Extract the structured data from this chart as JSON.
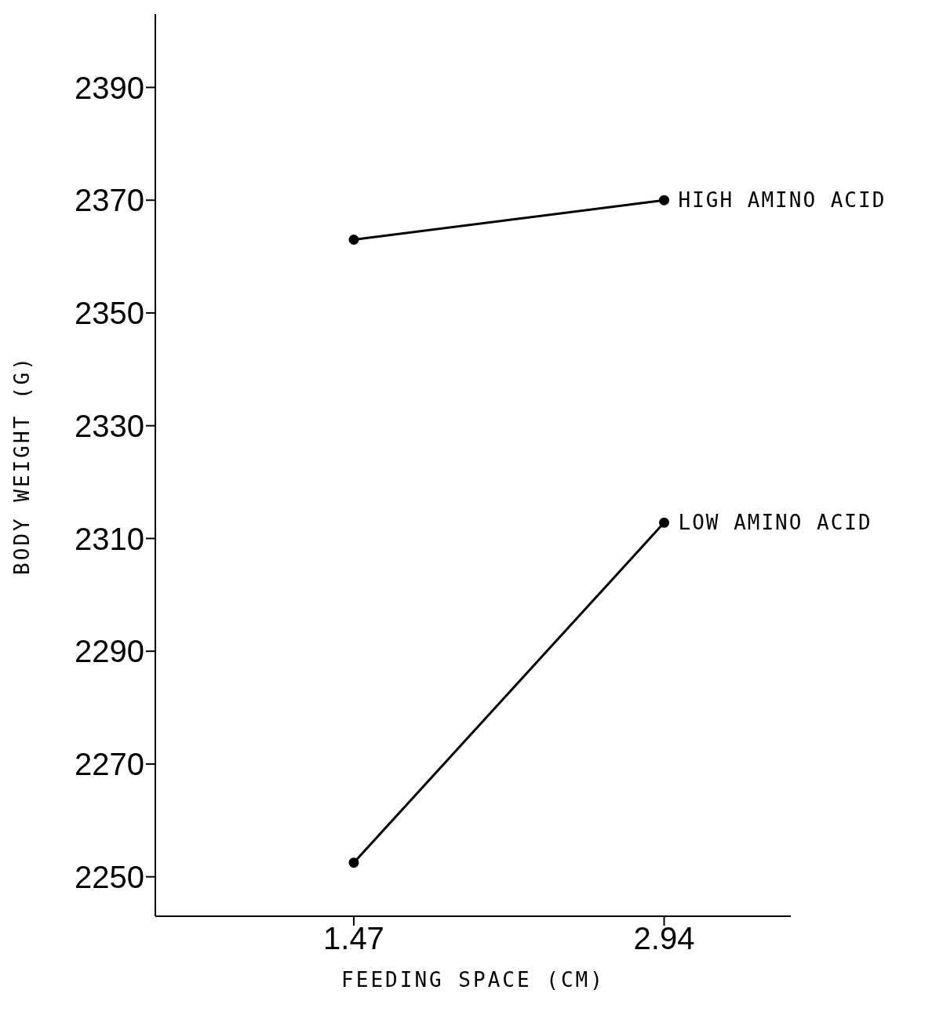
{
  "chart_data": {
    "type": "line",
    "xlabel": "FEEDING SPACE (CM)",
    "ylabel": "BODY WEIGHT (G)",
    "x": [
      1.47,
      2.94
    ],
    "series": [
      {
        "name": "HIGH AMINO ACID",
        "color": "#000000",
        "values": [
          2363,
          2370
        ]
      },
      {
        "name": "LOW AMINO ACID",
        "color": "#000000",
        "values": [
          2252.5,
          2312.8
        ]
      }
    ],
    "xlim": [
      0.53,
      3.54
    ],
    "xticks": [
      1.47,
      2.94
    ],
    "ylim": [
      2243,
      2403
    ],
    "yticks": [
      2250,
      2270,
      2290,
      2310,
      2330,
      2350,
      2370,
      2390
    ],
    "grid": false,
    "legend": false,
    "marker": "circle",
    "line_style": "solid"
  }
}
